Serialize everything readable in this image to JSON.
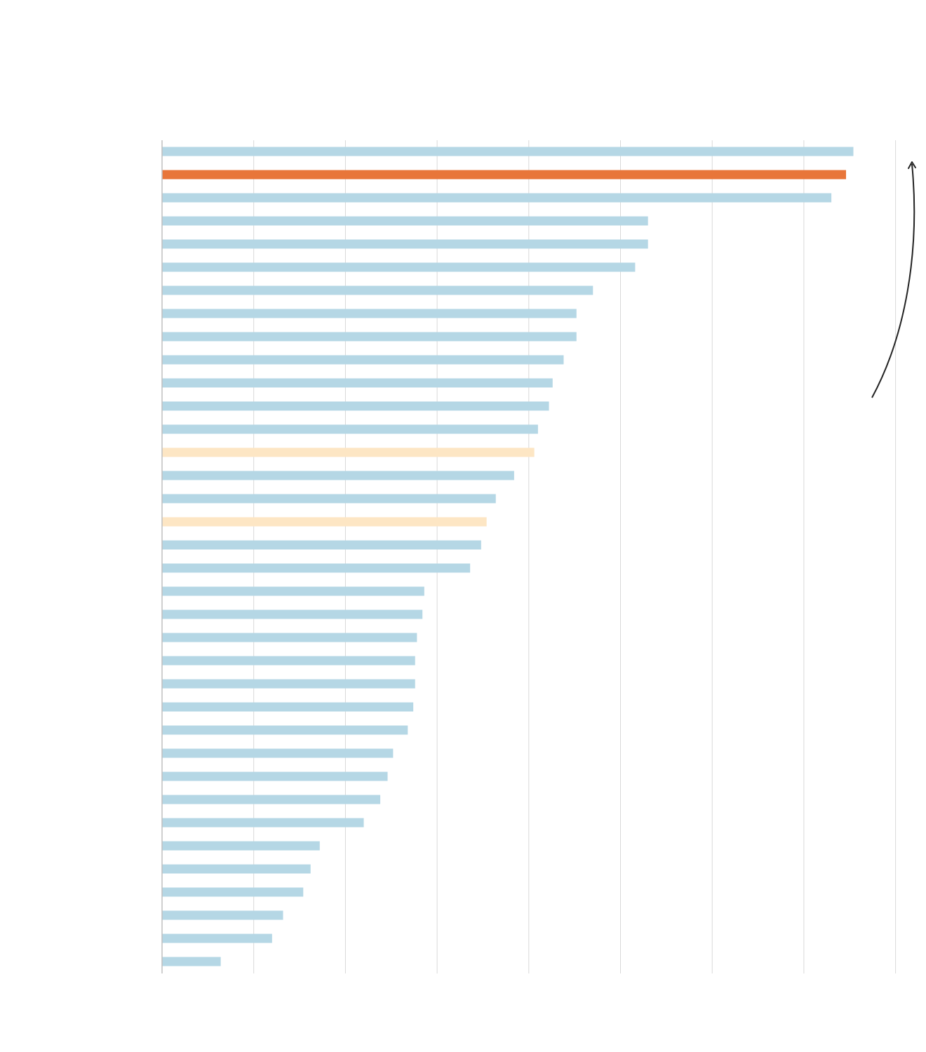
{
  "chart_data": {
    "type": "bar",
    "orientation": "horizontal",
    "title": "",
    "xlabel": "",
    "ylabel": "",
    "grid": true,
    "xlim": [
      0,
      8
    ],
    "series": [
      {
        "values": [
          7.54,
          7.46,
          7.3,
          5.3,
          5.3,
          5.16,
          4.7,
          4.52,
          4.52,
          4.38,
          4.26,
          4.22,
          4.1,
          4.06,
          3.84,
          3.64,
          3.54,
          3.48,
          3.36,
          2.86,
          2.84,
          2.78,
          2.76,
          2.76,
          2.74,
          2.68,
          2.52,
          2.46,
          2.38,
          2.2,
          1.72,
          1.62,
          1.54,
          1.32,
          1.2,
          0.64
        ]
      }
    ],
    "colors": {
      "default": "#b5d7e5",
      "highlight": "#e8763a",
      "secondary": "#fde6c4",
      "gridline": "#d9d9d9",
      "axis": "#bfbfbf",
      "annotation_arrow": "#222222"
    },
    "highlight_indices": [
      1
    ],
    "secondary_indices": [
      13,
      16
    ]
  }
}
